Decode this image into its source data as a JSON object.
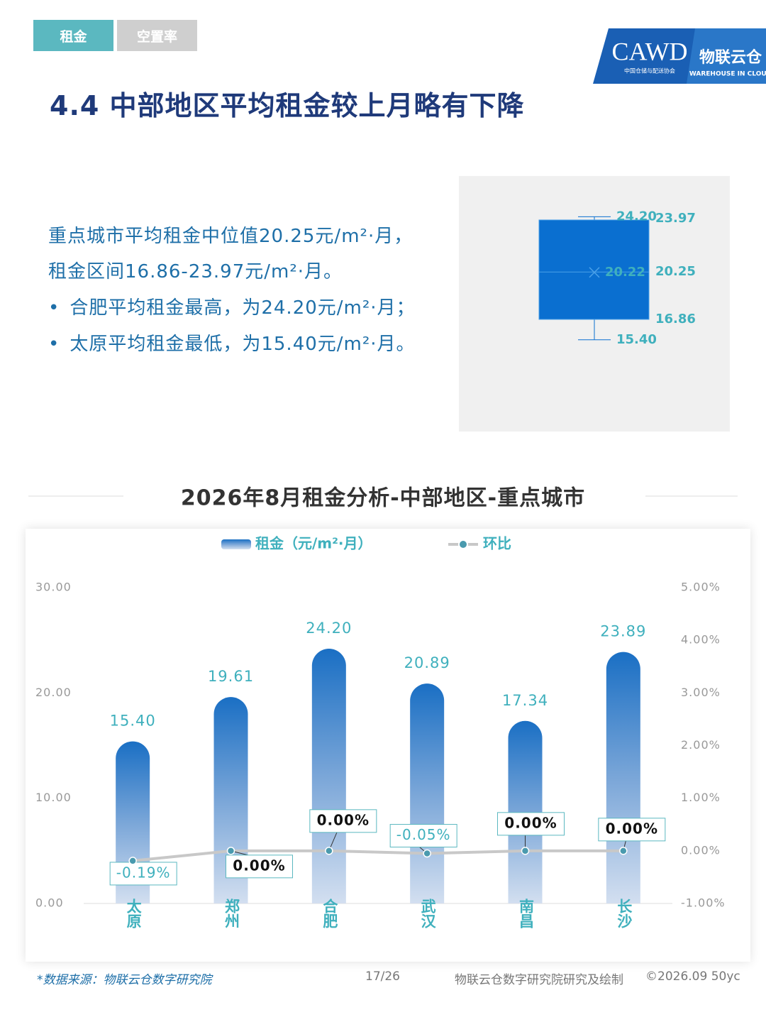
{
  "header": {
    "tabs": [
      "租金",
      "空置率"
    ],
    "logo": {
      "main": "CAWD",
      "sub": "中国仓储与配送协会",
      "brand": "物联云仓",
      "brand_sub": "WAREHOUSE IN CLOUD"
    }
  },
  "title": "4.4 中部地区平均租金较上月略有下降",
  "summary": {
    "paragraph": [
      "重点城市平均租金中位值20.25元/m²·月，",
      "租金区间16.86-23.97元/m²·月。"
    ],
    "bullets": [
      "合肥平均租金最高，为24.20元/m²·月；",
      "太原平均租金最低，为15.40元/m²·月。"
    ]
  },
  "chart_data": [
    {
      "type": "box",
      "min": 15.4,
      "q1": 16.86,
      "median": 20.25,
      "q3": 23.97,
      "max": 24.2,
      "mean": 20.22,
      "value_labels": {
        "min": "15.40",
        "max": "24.20"
      },
      "color": "#0a6fd0"
    },
    {
      "type": "bar",
      "title": "2026年8月租金分析-中部地区-重点城市",
      "categories": [
        "太原",
        "郑州",
        "合肥",
        "武汉",
        "南昌",
        "长沙"
      ],
      "series": [
        {
          "name": "租金（元/m²·月）",
          "color": "#1a6fc4",
          "values": [
            15.4,
            19.61,
            24.2,
            20.89,
            17.34,
            23.89
          ],
          "value_labels": [
            "15.40",
            "19.61",
            "24.20",
            "20.89",
            "17.34",
            "23.89"
          ]
        },
        {
          "name": "环比",
          "color": "#c8c8c8",
          "axis": "y2",
          "type": "line",
          "values": [
            -0.19,
            0,
            0,
            -0.05,
            0,
            0
          ],
          "value_labels": [
            "-0.19%",
            "0.00%",
            "0.00%",
            "-0.05%",
            "0.00%",
            "0.00%"
          ]
        }
      ],
      "ylim": [
        0,
        30
      ],
      "yticks": [
        {
          "value": 0,
          "label": "0.00"
        },
        {
          "value": 10,
          "label": "10.00"
        },
        {
          "value": 20,
          "label": "20.00"
        },
        {
          "value": 30,
          "label": "30.00"
        }
      ],
      "y2lim": [
        -1,
        5
      ],
      "y2ticks": [
        {
          "value": -1,
          "label": "-1.00%"
        },
        {
          "value": 0,
          "label": "0.00%"
        },
        {
          "value": 1,
          "label": "1.00%"
        },
        {
          "value": 2,
          "label": "2.00%"
        },
        {
          "value": 3,
          "label": "3.00%"
        },
        {
          "value": 4,
          "label": "4.00%"
        },
        {
          "value": 5,
          "label": "5.00%"
        }
      ],
      "legend": "top"
    }
  ],
  "footer": {
    "source": "*数据来源：物联云仓数字研究院",
    "page": "17/26",
    "credit": "物联云仓数字研究院研究及绘制",
    "copyright": "©2026.09 50yc"
  }
}
